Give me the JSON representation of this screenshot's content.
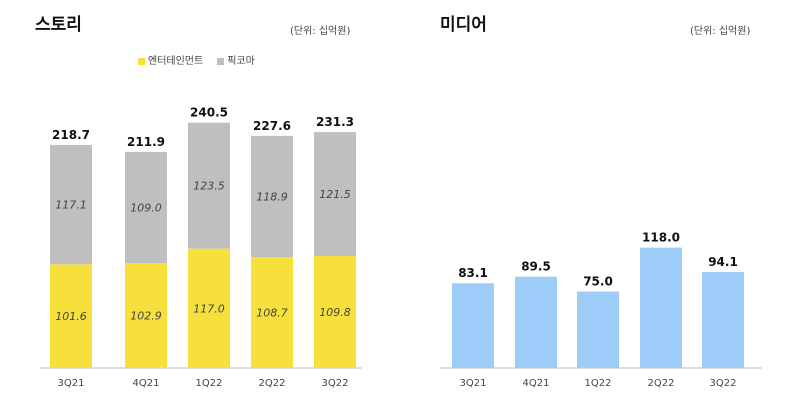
{
  "chart_data": [
    {
      "type": "bar",
      "stacked": true,
      "title": "스토리",
      "unit_note": "(단위: 십억원)",
      "categories": [
        "3Q21",
        "4Q21",
        "1Q22",
        "2Q22",
        "3Q22"
      ],
      "series": [
        {
          "name": "엔터테인먼트",
          "values": [
            101.6,
            102.9,
            117.0,
            108.7,
            109.8
          ],
          "color": "#F7E03C"
        },
        {
          "name": "픽코마",
          "values": [
            117.1,
            109.0,
            123.5,
            118.9,
            121.5
          ],
          "color": "#BFBFBF"
        }
      ],
      "totals": [
        218.7,
        211.9,
        240.5,
        227.6,
        231.3
      ],
      "legend": "top-center",
      "grid": false
    },
    {
      "type": "bar",
      "title": "미디어",
      "unit_note": "(단위: 십억원)",
      "categories": [
        "3Q21",
        "4Q21",
        "1Q22",
        "2Q22",
        "3Q22"
      ],
      "values": [
        83.1,
        89.5,
        75.0,
        118.0,
        94.1
      ],
      "color": "#9DCCF8",
      "grid": false
    }
  ]
}
